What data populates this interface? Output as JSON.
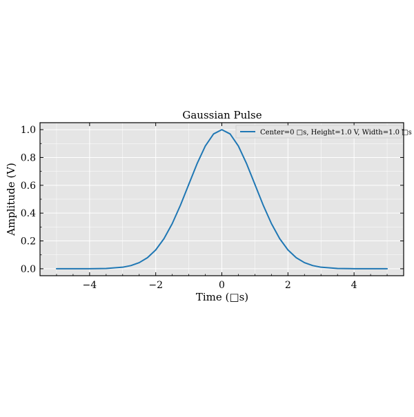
{
  "chart_data": {
    "type": "line",
    "title": "Gaussian Pulse",
    "xlabel": "Time (□s)",
    "ylabel": "Amplitude (V)",
    "xlim": [
      -5.5,
      5.5
    ],
    "ylim": [
      -0.05,
      1.05
    ],
    "xticks": [
      -4,
      -2,
      0,
      2,
      4
    ],
    "xtick_labels": [
      "−4",
      "−2",
      "0",
      "2",
      "4"
    ],
    "yticks": [
      0.0,
      0.2,
      0.4,
      0.6,
      0.8,
      1.0
    ],
    "ytick_labels": [
      "0.0",
      "0.2",
      "0.4",
      "0.6",
      "0.8",
      "1.0"
    ],
    "grid": true,
    "legend_position": "top-right",
    "background_color": "#e5e5e5",
    "series": [
      {
        "name": "Center=0 □s, Height=1.0 V, Width=1.0 □s",
        "color": "#1f77b4",
        "x": [
          -5.0,
          -4.5,
          -4.0,
          -3.5,
          -3.0,
          -2.75,
          -2.5,
          -2.25,
          -2.0,
          -1.75,
          -1.5,
          -1.25,
          -1.0,
          -0.75,
          -0.5,
          -0.25,
          0.0,
          0.25,
          0.5,
          0.75,
          1.0,
          1.25,
          1.5,
          1.75,
          2.0,
          2.25,
          2.5,
          2.75,
          3.0,
          3.5,
          4.0,
          4.5,
          5.0
        ],
        "y": [
          0.0,
          0.0,
          0.0003,
          0.0022,
          0.0111,
          0.0228,
          0.0439,
          0.0796,
          0.1353,
          0.2163,
          0.3247,
          0.4578,
          0.6065,
          0.7548,
          0.8825,
          0.9692,
          1.0,
          0.9692,
          0.8825,
          0.7548,
          0.6065,
          0.4578,
          0.3247,
          0.2163,
          0.1353,
          0.0796,
          0.0439,
          0.0228,
          0.0111,
          0.0022,
          0.0003,
          0.0,
          0.0
        ]
      }
    ]
  }
}
